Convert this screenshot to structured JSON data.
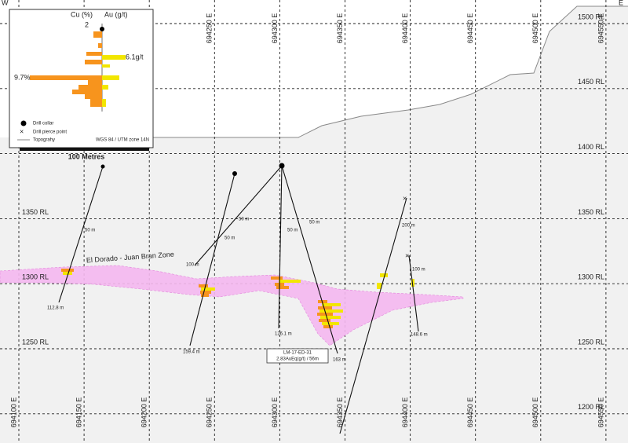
{
  "section": {
    "west": "W",
    "east": "E",
    "eastings": [
      "694100 E",
      "694150 E",
      "694200 E",
      "694250 E",
      "694300 E",
      "694350 E",
      "694400 E",
      "694450 E",
      "694500 E",
      "694550 E"
    ],
    "rl_right": [
      "1500 RL",
      "1450 RL",
      "1400 RL",
      "1350 RL",
      "1300 RL",
      "1250 RL",
      "1200 RL"
    ],
    "rl_left": [
      "1350 RL",
      "1300 RL",
      "1250 RL"
    ],
    "zone": "El Dorado - Juan Bran Zone",
    "scale": "100 Metres",
    "callout": {
      "hole": "LM-17-ED-31",
      "result": "2.83AuEq(g/t) / 56m"
    },
    "depth_labels": [
      "112.8 m",
      "159.4 m",
      "100 m",
      "126.1 m",
      "163 m",
      "148.6 m",
      "50 m",
      "50 m",
      "50 m",
      "50 m",
      "50 m",
      "200 m",
      "100 m"
    ]
  },
  "legend": {
    "cu": "Cu (%)",
    "au": "Au (g/t)",
    "scale_mark": "2",
    "au_max": "6.1g/t",
    "cu_max": "9.7%",
    "collar": "Drill collar",
    "pierce": "Drill pierce point",
    "topo": "Topograhy",
    "datum": "WGS 84 / UTM zone 14N"
  }
}
